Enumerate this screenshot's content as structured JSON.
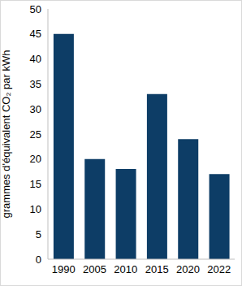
{
  "chart_data": {
    "type": "bar",
    "y_label": "grammes d'équivalent CO₂ par kWh",
    "categories": [
      "1990",
      "2005",
      "2010",
      "2015",
      "2020",
      "2022"
    ],
    "values": [
      45,
      20,
      18,
      33,
      24,
      17
    ],
    "color": "#0d3d66",
    "ylim": [
      0,
      50
    ],
    "yticks": [
      0,
      5,
      10,
      15,
      20,
      25,
      30,
      35,
      40,
      45,
      50
    ],
    "grid": false
  }
}
